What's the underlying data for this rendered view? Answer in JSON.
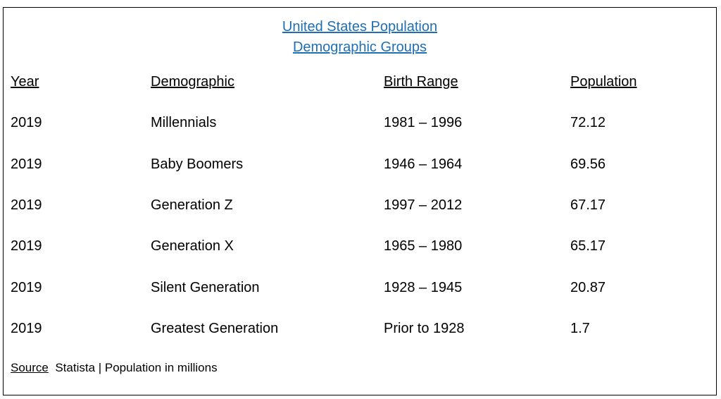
{
  "title": {
    "line1": "United States Population",
    "line2": "Demographic Groups"
  },
  "table": {
    "headers": [
      "Year",
      "Demographic",
      "Birth Range",
      "Population"
    ],
    "rows": [
      {
        "year": "2019",
        "demographic": "Millennials",
        "birth_range": "1981 – 1996",
        "population": "72.12"
      },
      {
        "year": "2019",
        "demographic": "Baby Boomers",
        "birth_range": "1946 – 1964",
        "population": "69.56"
      },
      {
        "year": "2019",
        "demographic": "Generation Z",
        "birth_range": "1997 – 2012",
        "population": "67.17"
      },
      {
        "year": "2019",
        "demographic": "Generation X",
        "birth_range": "1965 – 1980",
        "population": "65.17"
      },
      {
        "year": "2019",
        "demographic": "Silent Generation",
        "birth_range": "1928 – 1945",
        "population": "20.87"
      },
      {
        "year": "2019",
        "demographic": "Greatest Generation",
        "birth_range": "Prior to 1928",
        "population": "1.7"
      }
    ]
  },
  "footer": {
    "source_label": "Source",
    "source_text": "Statista | Population in millions"
  },
  "colors": {
    "title": "#1f6fb5",
    "text": "#000000",
    "border": "#000000",
    "background": "#ffffff"
  }
}
